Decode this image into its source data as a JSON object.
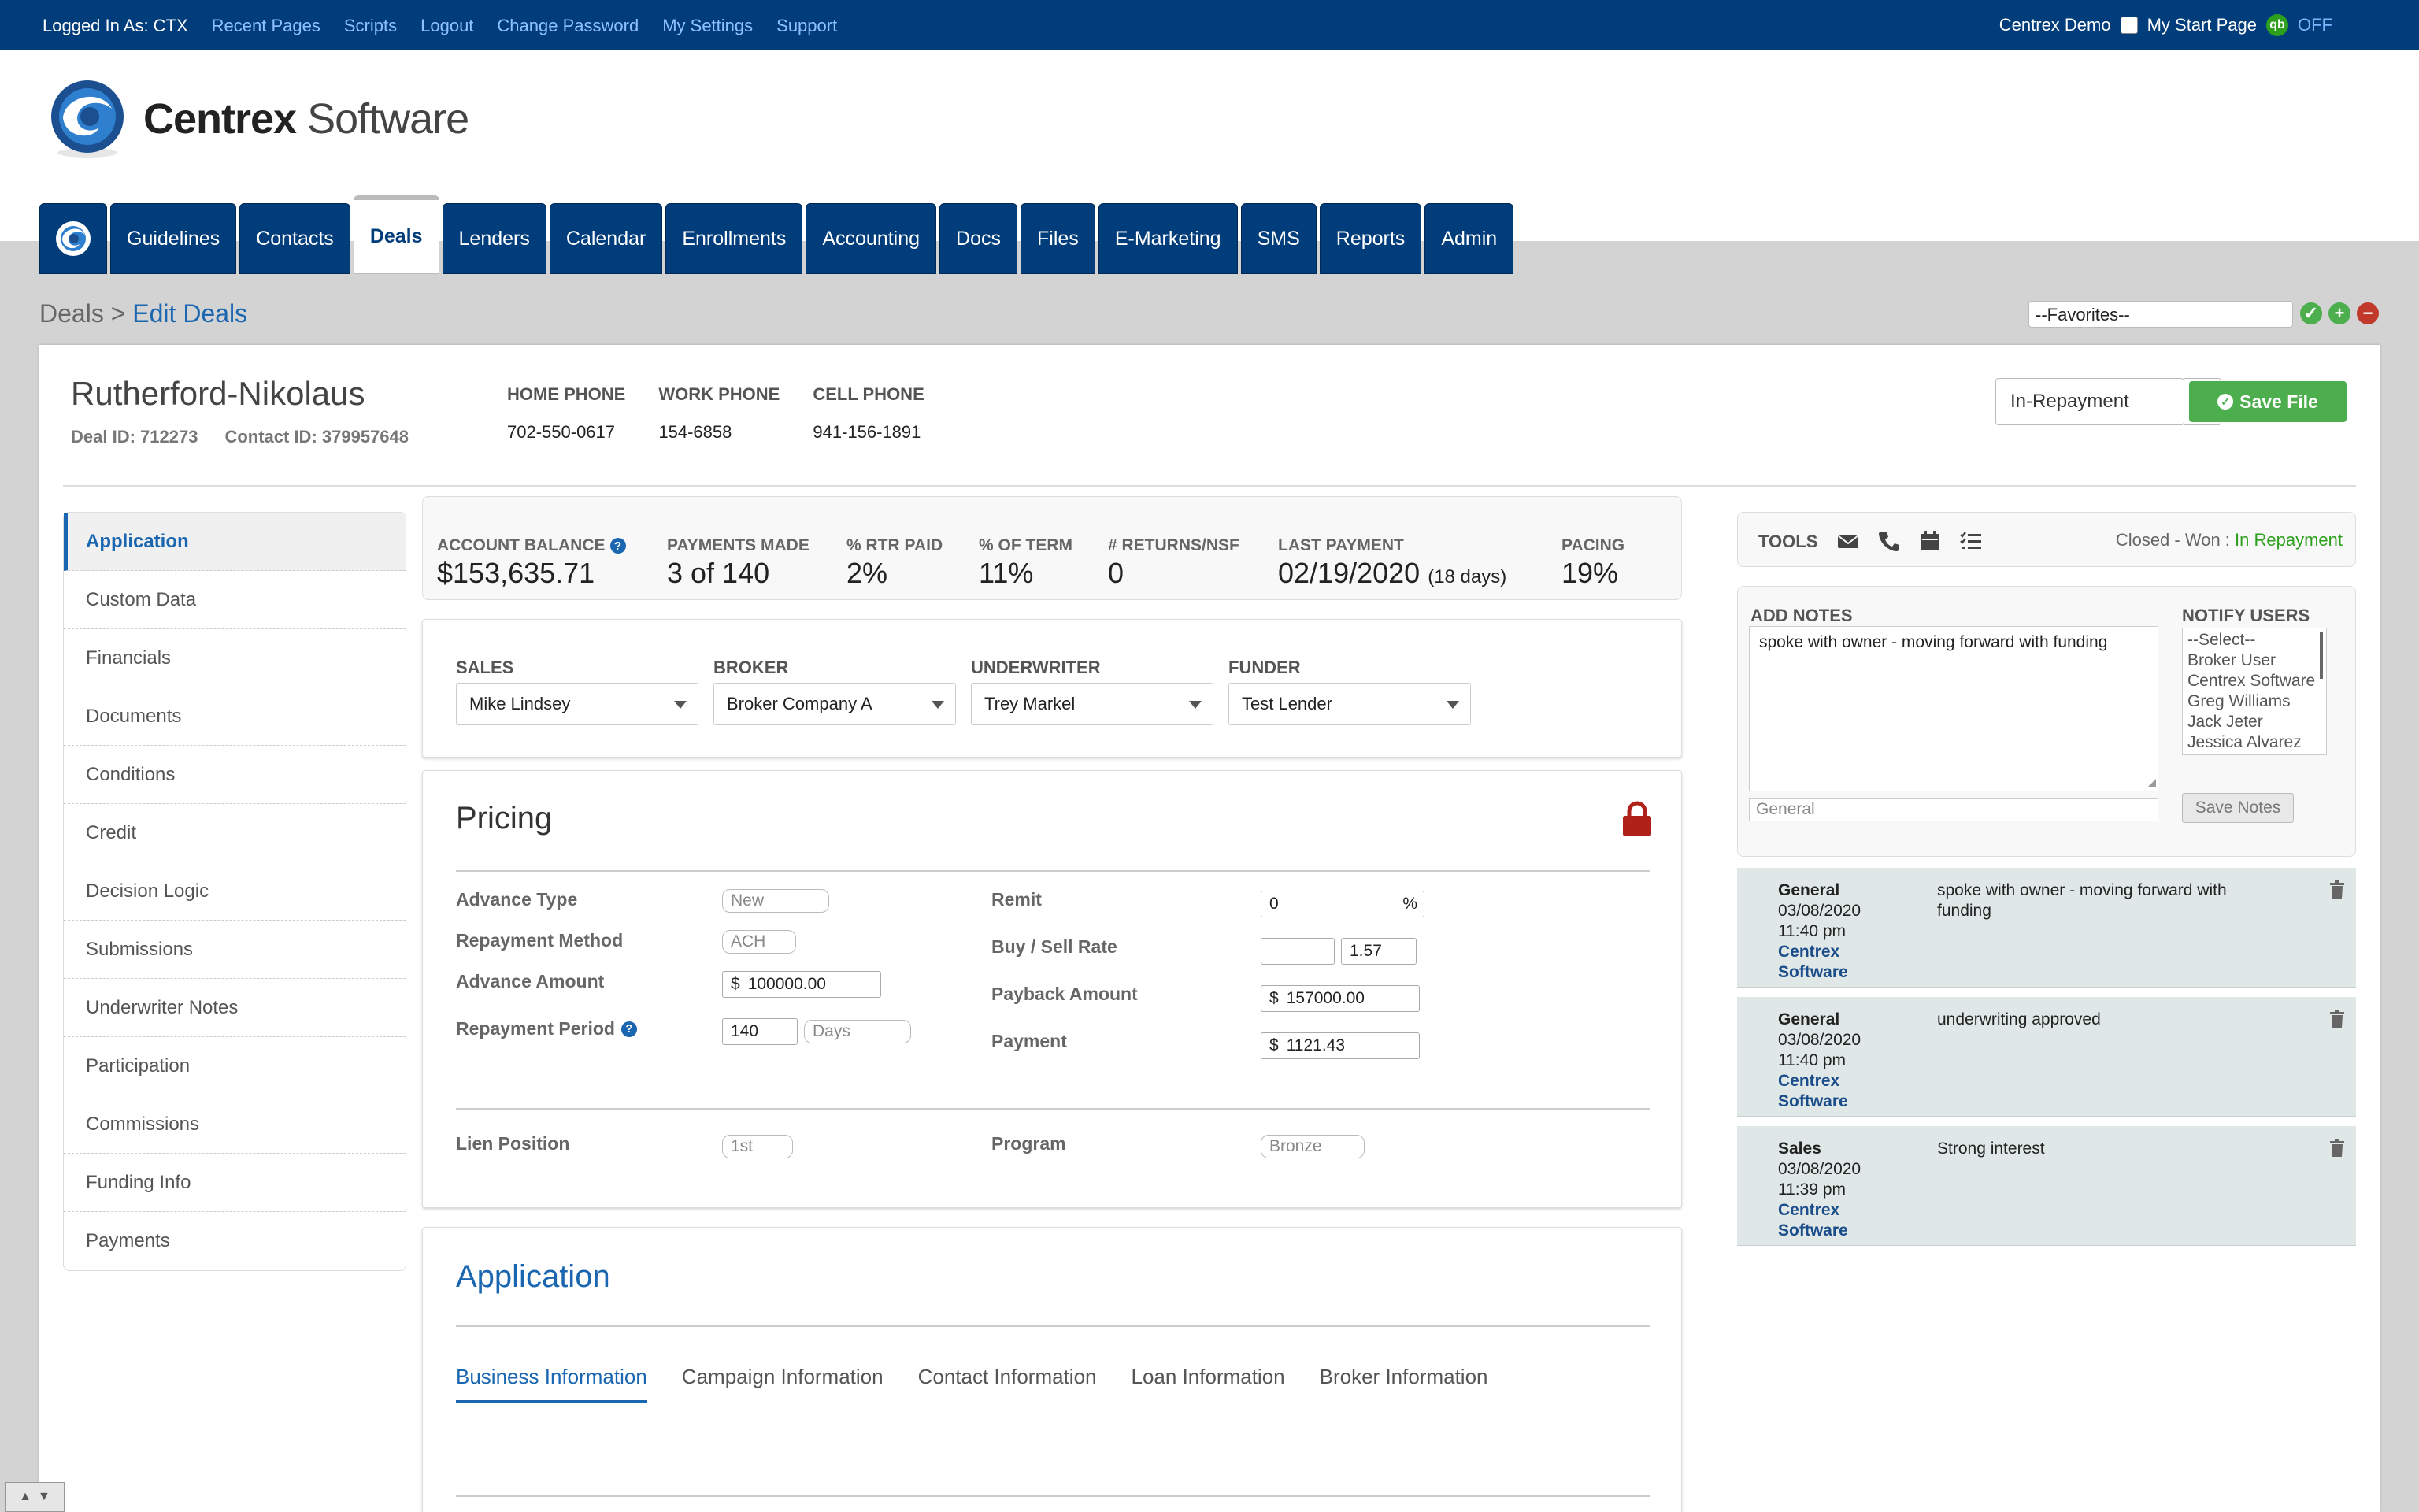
{
  "topbar": {
    "logged_in": "Logged In As: CTX",
    "links": [
      "Recent Pages",
      "Scripts",
      "Logout",
      "Change Password",
      "My Settings",
      "Support"
    ],
    "company": "Centrex Demo",
    "start_page": "My Start Page",
    "qb_label": "qb",
    "qb_status": "OFF"
  },
  "logo": {
    "bold": "Centrex",
    "light": " Software"
  },
  "nav": {
    "tabs": [
      "Guidelines",
      "Contacts",
      "Deals",
      "Lenders",
      "Calendar",
      "Enrollments",
      "Accounting",
      "Docs",
      "Files",
      "E-Marketing",
      "SMS",
      "Reports",
      "Admin"
    ],
    "active": "Deals"
  },
  "breadcrumb": {
    "parent": "Deals",
    "sep": " > ",
    "current": "Edit Deals"
  },
  "favorites": {
    "value": "--Favorites--"
  },
  "deal": {
    "name": "Rutherford-Nikolaus",
    "deal_id": "Deal ID: 712273",
    "contact_id": "Contact ID: 379957648",
    "phones": [
      {
        "label": "HOME PHONE",
        "value": "702-550-0617"
      },
      {
        "label": "WORK PHONE",
        "value": "154-6858"
      },
      {
        "label": "CELL PHONE",
        "value": "941-156-1891"
      }
    ],
    "status": "In-Repayment",
    "save_label": "Save File"
  },
  "sidebar": {
    "items": [
      "Application",
      "Custom Data",
      "Financials",
      "Documents",
      "Conditions",
      "Credit",
      "Decision Logic",
      "Submissions",
      "Underwriter Notes",
      "Participation",
      "Commissions",
      "Funding Info",
      "Payments"
    ],
    "active": "Application"
  },
  "stats": {
    "account_balance": {
      "label": "ACCOUNT BALANCE",
      "value": "$153,635.71"
    },
    "payments_made": {
      "label": "PAYMENTS MADE",
      "value": "3 of 140"
    },
    "rtr_paid": {
      "label": "% RTR PAID",
      "value": "2%"
    },
    "of_term": {
      "label": "% OF TERM",
      "value": "11%"
    },
    "returns": {
      "label": "# RETURNS/NSF",
      "value": "0"
    },
    "last_payment": {
      "label": "LAST PAYMENT",
      "value": "02/19/2020",
      "extra": "(18 days)"
    },
    "pacing": {
      "label": "PACING",
      "value": "19%"
    }
  },
  "staff": [
    {
      "label": "SALES",
      "value": "Mike Lindsey"
    },
    {
      "label": "BROKER",
      "value": "Broker Company A"
    },
    {
      "label": "UNDERWRITER",
      "value": "Trey Markel"
    },
    {
      "label": "FUNDER",
      "value": "Test Lender"
    }
  ],
  "pricing": {
    "title": "Pricing",
    "advance_type": {
      "label": "Advance Type",
      "value": "New"
    },
    "repayment_method": {
      "label": "Repayment Method",
      "value": "ACH"
    },
    "advance_amount": {
      "label": "Advance Amount",
      "prefix": "$",
      "value": "100000.00"
    },
    "repayment_period": {
      "label": "Repayment Period",
      "value": "140",
      "unit": "Days"
    },
    "remit": {
      "label": "Remit",
      "value": "0",
      "suffix": "%"
    },
    "buy_sell_rate": {
      "label": "Buy / Sell Rate",
      "buy": "",
      "sell": "1.57"
    },
    "payback_amount": {
      "label": "Payback Amount",
      "prefix": "$",
      "value": "157000.00"
    },
    "payment": {
      "label": "Payment",
      "prefix": "$",
      "value": "1121.43"
    },
    "lien_position": {
      "label": "Lien Position",
      "value": "1st"
    },
    "program": {
      "label": "Program",
      "value": "Bronze"
    }
  },
  "application": {
    "title": "Application",
    "tabs": [
      "Business Information",
      "Campaign Information",
      "Contact Information",
      "Loan Information",
      "Broker Information"
    ],
    "active": "Business Information"
  },
  "tools": {
    "label": "TOOLS",
    "status_prefix": "Closed - Won : ",
    "status_value": "In Repayment"
  },
  "notes_form": {
    "add_label": "ADD NOTES",
    "text": "spoke with owner - moving forward with funding",
    "category": "General",
    "notify_label": "NOTIFY USERS",
    "users": [
      "--Select--",
      "Broker User",
      "Centrex Software",
      "Greg Williams",
      "Jack Jeter",
      "Jessica Alvarez"
    ],
    "save_label": "Save Notes"
  },
  "notes": [
    {
      "category": "General",
      "date": "03/08/2020",
      "time": "11:40 pm",
      "author1": "Centrex",
      "author2": "Software",
      "text": "spoke with owner - moving forward with funding"
    },
    {
      "category": "General",
      "date": "03/08/2020",
      "time": "11:40 pm",
      "author1": "Centrex",
      "author2": "Software",
      "text": "underwriting approved"
    },
    {
      "category": "Sales",
      "date": "03/08/2020",
      "time": "11:39 pm",
      "author1": "Centrex",
      "author2": "Software",
      "text": "Strong interest"
    }
  ],
  "colors": {
    "brand": "#003d7a",
    "accent": "#1a66b0",
    "success": "#4cae4c",
    "danger": "#c0392b"
  }
}
